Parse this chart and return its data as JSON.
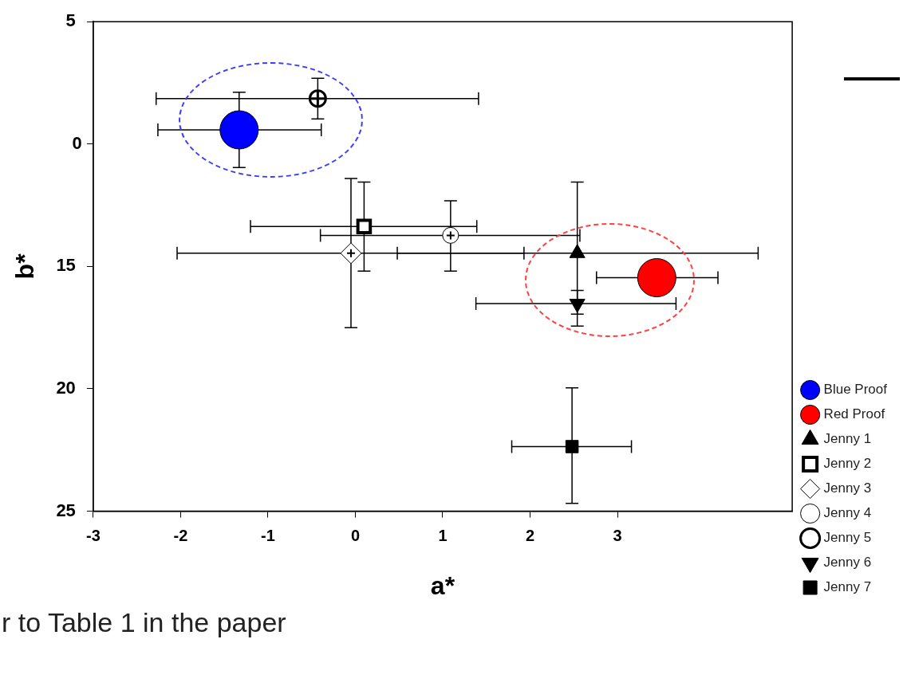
{
  "chart_data": {
    "type": "scatter",
    "xlabel": "a*",
    "ylabel": "b*",
    "xlim": [
      -3,
      5
    ],
    "xticks": [
      -3,
      -2,
      -1,
      0,
      1,
      2,
      3
    ],
    "ylim": [
      25,
      5
    ],
    "yticks": [
      5,
      {
        "value": 10,
        "label": null
      },
      15,
      20,
      25
    ],
    "grid": false,
    "legend": "right",
    "annotations": [
      "r to Table 1 in the paper",
      "0"
    ],
    "series": [
      {
        "name": "Blue Proof",
        "color": "#0000ff",
        "marker": "circle",
        "x": [
          -1.33
        ],
        "values": [
          9.42
        ],
        "errors": [
          [
            7.88,
            10.96
          ]
        ],
        "xerrors": [
          [
            -2.26,
            -0.39
          ]
        ]
      },
      {
        "name": "Red Proof",
        "color": "#ff0000",
        "marker": "circle",
        "x": [
          3.45
        ],
        "values": [
          15.46
        ],
        "errors": [
          null
        ],
        "xerrors": [
          [
            2.76,
            4.15
          ]
        ]
      },
      {
        "name": "Jenny 1",
        "color": "#000000",
        "marker": "triangle",
        "x": [
          2.54
        ],
        "values": [
          14.46
        ],
        "errors": [
          [
            11.55,
            17.44
          ]
        ],
        "xerrors": [
          [
            0.48,
            4.61
          ]
        ]
      },
      {
        "name": "Jenny 2",
        "color": "#000000",
        "marker": "square-open",
        "x": [
          0.1
        ],
        "values": [
          13.37
        ],
        "errors": [
          [
            11.55,
            15.19
          ]
        ],
        "xerrors": [
          [
            -1.2,
            1.39
          ]
        ]
      },
      {
        "name": "Jenny 3",
        "color": "#000000",
        "marker": "diamond-plus",
        "x": [
          -0.05
        ],
        "values": [
          14.46
        ],
        "errors": [
          [
            11.41,
            17.5
          ]
        ],
        "xerrors": [
          [
            -2.04,
            1.93
          ]
        ]
      },
      {
        "name": "Jenny 4",
        "color": "#000000",
        "marker": "circle-plus",
        "x": [
          1.09
        ],
        "values": [
          13.73
        ],
        "errors": [
          [
            12.32,
            15.19
          ]
        ],
        "xerrors": [
          [
            -0.4,
            2.57
          ]
        ]
      },
      {
        "name": "Jenny 5",
        "color": "#000000",
        "marker": "circle-cross",
        "x": [
          -0.43
        ],
        "values": [
          8.14
        ],
        "errors": [
          [
            7.31,
            8.97
          ]
        ],
        "xerrors": [
          [
            -2.28,
            1.41
          ]
        ]
      },
      {
        "name": "Jenny 6",
        "color": "#000000",
        "marker": "triangle-down",
        "x": [
          2.54
        ],
        "values": [
          16.52
        ],
        "errors": [
          [
            15.98,
            16.95
          ]
        ],
        "xerrors": [
          [
            1.38,
            3.67
          ]
        ]
      },
      {
        "name": "Jenny 7",
        "color": "#000000",
        "marker": "square",
        "x": [
          2.48
        ],
        "values": [
          22.36
        ],
        "errors": [
          [
            19.96,
            24.68
          ]
        ],
        "xerrors": [
          [
            1.79,
            3.16
          ]
        ]
      }
    ]
  }
}
